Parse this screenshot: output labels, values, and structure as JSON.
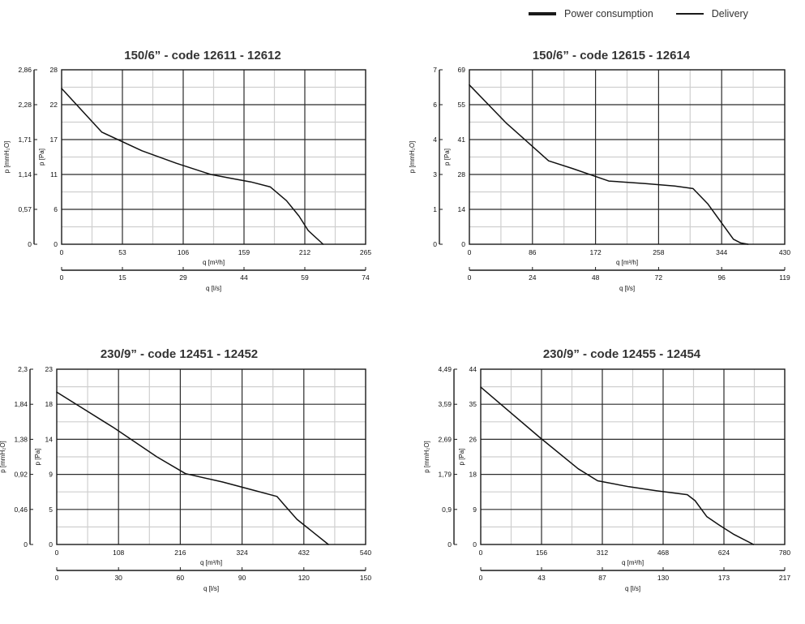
{
  "legend": [
    {
      "label": "Power consumption",
      "style": "thick"
    },
    {
      "label": "Delivery",
      "style": "thin"
    }
  ],
  "chart_data": [
    {
      "type": "line",
      "title": "150/6” - code 12611 - 12612",
      "ylabel_pa": "p [Pa]",
      "ylabel_mmh2o": "p [mmH₂O]",
      "xlabel_m3h": "q [m³/h]",
      "xlabel_ls": "q [l/s]",
      "x_ticks_m3h": [
        "0",
        "53",
        "106",
        "159",
        "212",
        "265"
      ],
      "x_ticks_ls": [
        "0",
        "15",
        "29",
        "44",
        "59",
        "74"
      ],
      "y_ticks_pa": [
        "0",
        "6",
        "11",
        "17",
        "22",
        "28"
      ],
      "y_ticks_mmh2o": [
        "0",
        "0,57",
        "1,14",
        "1,71",
        "2,28",
        "2,86"
      ],
      "xlim": [
        0,
        265
      ],
      "ylim": [
        0,
        28
      ],
      "grid": true,
      "series": [
        {
          "name": "Delivery",
          "x": [
            0,
            35,
            70,
            100,
            130,
            150,
            165,
            182,
            196,
            207,
            215,
            228
          ],
          "y": [
            25,
            18,
            15,
            13,
            11.2,
            10.5,
            10,
            9.2,
            7.0,
            4.5,
            2.2,
            0
          ]
        }
      ]
    },
    {
      "type": "line",
      "title": "150/6” - code 12615 - 12614",
      "ylabel_pa": "p [Pa]",
      "ylabel_mmh2o": "p [mmH₂O]",
      "xlabel_m3h": "q [m³/h]",
      "xlabel_ls": "q [l/s]",
      "x_ticks_m3h": [
        "0",
        "86",
        "172",
        "258",
        "344",
        "430"
      ],
      "x_ticks_ls": [
        "0",
        "24",
        "48",
        "72",
        "96",
        "119"
      ],
      "y_ticks_pa": [
        "0",
        "14",
        "28",
        "41",
        "55",
        "69"
      ],
      "y_ticks_mmh2o": [
        "0",
        "1",
        "3",
        "4",
        "6",
        "7"
      ],
      "xlim": [
        0,
        430
      ],
      "ylim": [
        0,
        69
      ],
      "grid": true,
      "series": [
        {
          "name": "Delivery",
          "x": [
            0,
            50,
            108,
            140,
            190,
            240,
            280,
            305,
            325,
            345,
            360,
            370,
            380
          ],
          "y": [
            63,
            48,
            33,
            30,
            25,
            24,
            23,
            22,
            16,
            8,
            2,
            0.5,
            0
          ]
        }
      ]
    },
    {
      "type": "line",
      "title": "230/9” - code 12451 - 12452",
      "ylabel_pa": "p [Pa]",
      "ylabel_mmh2o": "p [mmH₂O]",
      "xlabel_m3h": "q [m³/h]",
      "xlabel_ls": "q [l/s]",
      "x_ticks_m3h": [
        "0",
        "108",
        "216",
        "324",
        "432",
        "540"
      ],
      "x_ticks_ls": [
        "0",
        "30",
        "60",
        "90",
        "120",
        "150"
      ],
      "y_ticks_pa": [
        "0",
        "5",
        "9",
        "14",
        "18",
        "23"
      ],
      "y_ticks_mmh2o": [
        "0",
        "0,46",
        "0,92",
        "1,38",
        "1,84",
        "2,3"
      ],
      "xlim": [
        0,
        540
      ],
      "ylim": [
        0,
        23
      ],
      "grid": true,
      "series": [
        {
          "name": "Delivery",
          "x": [
            0,
            100,
            175,
            225,
            290,
            340,
            385,
            400,
            420,
            450,
            475
          ],
          "y": [
            20,
            15.3,
            11.5,
            9.3,
            8.2,
            7.2,
            6.3,
            5.0,
            3.3,
            1.5,
            0
          ]
        }
      ]
    },
    {
      "type": "line",
      "title": "230/9” - code 12455 - 12454",
      "ylabel_pa": "p [Pa]",
      "ylabel_mmh2o": "p [mmH₂O]",
      "xlabel_m3h": "q [m³/h]",
      "xlabel_ls": "q [l/s]",
      "x_ticks_m3h": [
        "0",
        "156",
        "312",
        "468",
        "624",
        "780"
      ],
      "x_ticks_ls": [
        "0",
        "43",
        "87",
        "130",
        "173",
        "217"
      ],
      "y_ticks_pa": [
        "0",
        "9",
        "18",
        "26",
        "35",
        "44"
      ],
      "y_ticks_mmh2o": [
        "0",
        "0,9",
        "1,79",
        "2,69",
        "3,59",
        "4,49"
      ],
      "xlim": [
        0,
        780
      ],
      "ylim": [
        0,
        44
      ],
      "grid": true,
      "series": [
        {
          "name": "Delivery",
          "x": [
            0,
            150,
            250,
            300,
            380,
            450,
            530,
            550,
            580,
            610,
            650,
            700
          ],
          "y": [
            39.5,
            27,
            19,
            16,
            14.5,
            13.5,
            12.5,
            11,
            7,
            5,
            2.5,
            0
          ]
        }
      ]
    }
  ]
}
